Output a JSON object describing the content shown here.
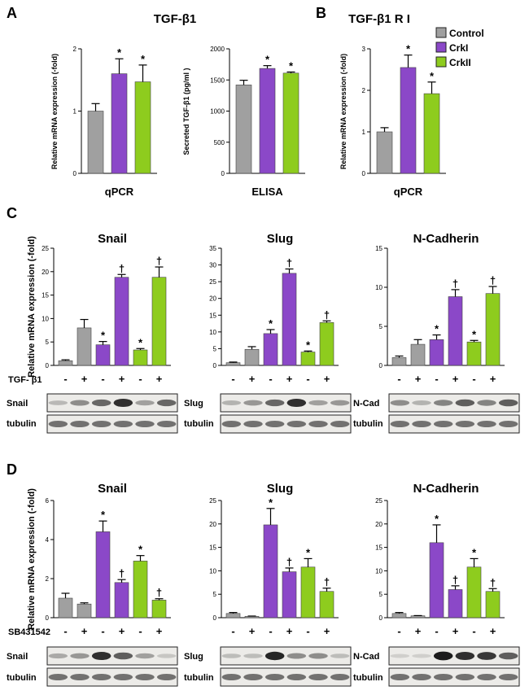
{
  "colors": {
    "control": "#a0a0a0",
    "crki": "#8b48c8",
    "crkii": "#8ecc1e",
    "edge": "#222222"
  },
  "panels": [
    {
      "letter": "A",
      "title": "TGF-β1"
    },
    {
      "letter": "B",
      "title": "TGF-β1 R I"
    },
    {
      "letter": "C",
      "title": ""
    },
    {
      "letter": "D",
      "title": ""
    }
  ],
  "legend": [
    {
      "label": "Control",
      "color": "control"
    },
    {
      "label": "CrkI",
      "color": "crki"
    },
    {
      "label": "CrkII",
      "color": "crkii"
    }
  ],
  "chart_data": [
    {
      "id": "A1",
      "type": "bar",
      "title": "",
      "xlabel": "qPCR",
      "ylabel": "Relative mRNA expression (-fold)",
      "ylim": [
        0,
        2
      ],
      "yticks": [
        0,
        1,
        2
      ],
      "categories": [
        "Control",
        "CrkI",
        "CrkII"
      ],
      "values": [
        1.0,
        1.6,
        1.47
      ],
      "errors": [
        0.12,
        0.24,
        0.27
      ],
      "colors": [
        "control",
        "crki",
        "crkii"
      ],
      "annotations": [
        "",
        "*",
        "*"
      ],
      "treatment": null
    },
    {
      "id": "A2",
      "type": "bar",
      "title": "",
      "xlabel": "ELISA",
      "ylabel": "Secreted TGF-β1 (pg/ml )",
      "ylim": [
        0,
        2000
      ],
      "yticks": [
        0,
        500,
        1000,
        1500,
        2000
      ],
      "categories": [
        "Control",
        "CrkI",
        "CrkII"
      ],
      "values": [
        1420,
        1685,
        1610
      ],
      "errors": [
        75,
        45,
        18
      ],
      "colors": [
        "control",
        "crki",
        "crkii"
      ],
      "annotations": [
        "",
        "*",
        "*"
      ],
      "treatment": null
    },
    {
      "id": "B1",
      "type": "bar",
      "title": "",
      "xlabel": "qPCR",
      "ylabel": "Relative mRNA expression (-fold)",
      "ylim": [
        0,
        3
      ],
      "yticks": [
        0,
        1,
        2,
        3
      ],
      "categories": [
        "Control",
        "CrkI",
        "CrkII"
      ],
      "values": [
        1.0,
        2.55,
        1.92
      ],
      "errors": [
        0.1,
        0.3,
        0.28
      ],
      "colors": [
        "control",
        "crki",
        "crkii"
      ],
      "annotations": [
        "",
        "*",
        "*"
      ],
      "treatment": null
    },
    {
      "id": "C1",
      "type": "bar",
      "title": "Snail",
      "xlabel": "",
      "ylabel": "Relative mRNA expression (-fold)",
      "ylim": [
        0,
        25
      ],
      "yticks": [
        0,
        5,
        10,
        15,
        20,
        25
      ],
      "categories": [
        "Control -",
        "Control +",
        "CrkI -",
        "CrkI +",
        "CrkII -",
        "CrkII +"
      ],
      "values": [
        1.0,
        8.0,
        4.4,
        18.8,
        3.3,
        18.8
      ],
      "errors": [
        0.2,
        1.8,
        0.7,
        0.6,
        0.3,
        2.2
      ],
      "colors": [
        "control",
        "control",
        "crki",
        "crki",
        "crkii",
        "crkii"
      ],
      "annotations": [
        "",
        "",
        "*",
        "†",
        "*",
        "†"
      ],
      "treatment": {
        "label": "TGF- β1",
        "signs": [
          "-",
          "+",
          "-",
          "+",
          "-",
          "+"
        ]
      }
    },
    {
      "id": "C2",
      "type": "bar",
      "title": "Slug",
      "xlabel": "",
      "ylabel": "",
      "ylim": [
        0,
        35
      ],
      "yticks": [
        0,
        5,
        10,
        15,
        20,
        25,
        30,
        35
      ],
      "categories": [
        "Control -",
        "Control +",
        "CrkI -",
        "CrkI +",
        "CrkII -",
        "CrkII +"
      ],
      "values": [
        0.8,
        4.8,
        9.5,
        27.5,
        4.0,
        12.8
      ],
      "errors": [
        0.2,
        0.8,
        1.2,
        1.3,
        0.3,
        0.5
      ],
      "colors": [
        "control",
        "control",
        "crki",
        "crki",
        "crkii",
        "crkii"
      ],
      "annotations": [
        "",
        "",
        "*",
        "†",
        "*",
        "†"
      ],
      "treatment": {
        "label": "",
        "signs": [
          "-",
          "+",
          "-",
          "+",
          "-",
          "+"
        ]
      }
    },
    {
      "id": "C3",
      "type": "bar",
      "title": "N-Cadherin",
      "xlabel": "",
      "ylabel": "",
      "ylim": [
        0,
        15
      ],
      "yticks": [
        0,
        5,
        10,
        15
      ],
      "categories": [
        "Control -",
        "Control +",
        "CrkI -",
        "CrkI +",
        "CrkII -",
        "CrkII +"
      ],
      "values": [
        1.0,
        2.7,
        3.3,
        8.8,
        3.0,
        9.2
      ],
      "errors": [
        0.2,
        0.6,
        0.6,
        0.9,
        0.2,
        0.9
      ],
      "colors": [
        "control",
        "control",
        "crki",
        "crki",
        "crkii",
        "crkii"
      ],
      "annotations": [
        "",
        "",
        "*",
        "†",
        "*",
        "†"
      ],
      "treatment": {
        "label": "",
        "signs": [
          "-",
          "+",
          "-",
          "+",
          "-",
          "+"
        ]
      }
    },
    {
      "id": "D1",
      "type": "bar",
      "title": "Snail",
      "xlabel": "",
      "ylabel": "Relative mRNA expression (-fold)",
      "ylim": [
        0,
        6
      ],
      "yticks": [
        0,
        2,
        4,
        6
      ],
      "categories": [
        "Control -",
        "Control +",
        "CrkI -",
        "CrkI +",
        "CrkII -",
        "CrkII +"
      ],
      "values": [
        1.0,
        0.7,
        4.4,
        1.8,
        2.9,
        0.9
      ],
      "errors": [
        0.25,
        0.06,
        0.55,
        0.15,
        0.28,
        0.07
      ],
      "colors": [
        "control",
        "control",
        "crki",
        "crki",
        "crkii",
        "crkii"
      ],
      "annotations": [
        "",
        "",
        "*",
        "†",
        "*",
        "†"
      ],
      "treatment": {
        "label": "SB431542",
        "signs": [
          "-",
          "+",
          "-",
          "+",
          "-",
          "+"
        ]
      }
    },
    {
      "id": "D2",
      "type": "bar",
      "title": "Slug",
      "xlabel": "",
      "ylabel": "",
      "ylim": [
        0,
        25
      ],
      "yticks": [
        0,
        5,
        10,
        15,
        20,
        25
      ],
      "categories": [
        "Control -",
        "Control +",
        "CrkI -",
        "CrkI +",
        "CrkII -",
        "CrkII +"
      ],
      "values": [
        0.9,
        0.3,
        19.8,
        9.8,
        10.8,
        5.6
      ],
      "errors": [
        0.2,
        0.05,
        3.5,
        0.8,
        1.8,
        0.7
      ],
      "colors": [
        "control",
        "control",
        "crki",
        "crki",
        "crkii",
        "crkii"
      ],
      "annotations": [
        "",
        "",
        "*",
        "†",
        "*",
        "†"
      ],
      "treatment": {
        "label": "",
        "signs": [
          "-",
          "+",
          "-",
          "+",
          "-",
          "+"
        ]
      }
    },
    {
      "id": "D3",
      "type": "bar",
      "title": "N-Cadherin",
      "xlabel": "",
      "ylabel": "",
      "ylim": [
        0,
        25
      ],
      "yticks": [
        0,
        5,
        10,
        15,
        20,
        25
      ],
      "categories": [
        "Control -",
        "Control +",
        "CrkI -",
        "CrkI +",
        "CrkII -",
        "CrkII +"
      ],
      "values": [
        0.9,
        0.4,
        16.0,
        6.0,
        10.8,
        5.6
      ],
      "errors": [
        0.2,
        0.05,
        3.8,
        0.8,
        1.8,
        0.6
      ],
      "colors": [
        "control",
        "control",
        "crki",
        "crki",
        "crkii",
        "crkii"
      ],
      "annotations": [
        "",
        "",
        "*",
        "†",
        "*",
        "†"
      ],
      "treatment": {
        "label": "",
        "signs": [
          "-",
          "+",
          "-",
          "+",
          "-",
          "+"
        ]
      }
    }
  ],
  "blots": [
    {
      "id": "C1",
      "labels": [
        "Snail",
        "tubulin"
      ],
      "bands": [
        [
          0.12,
          0.35,
          0.55,
          0.85,
          0.25,
          0.55
        ],
        [
          0.5,
          0.5,
          0.5,
          0.5,
          0.5,
          0.5
        ]
      ]
    },
    {
      "id": "C2",
      "labels": [
        "Slug",
        "tubulin"
      ],
      "bands": [
        [
          0.15,
          0.3,
          0.55,
          0.85,
          0.25,
          0.3
        ],
        [
          0.5,
          0.5,
          0.5,
          0.5,
          0.5,
          0.5
        ]
      ]
    },
    {
      "id": "C3",
      "labels": [
        "N-Cad",
        "tubulin"
      ],
      "bands": [
        [
          0.35,
          0.15,
          0.4,
          0.6,
          0.4,
          0.6
        ],
        [
          0.5,
          0.5,
          0.5,
          0.5,
          0.5,
          0.5
        ]
      ]
    },
    {
      "id": "D1",
      "labels": [
        "Snail",
        "tubulin"
      ],
      "bands": [
        [
          0.2,
          0.3,
          0.85,
          0.6,
          0.25,
          0.05
        ],
        [
          0.5,
          0.5,
          0.5,
          0.5,
          0.5,
          0.5
        ]
      ]
    },
    {
      "id": "D2",
      "labels": [
        "Slug",
        "tubulin"
      ],
      "bands": [
        [
          0.1,
          0.1,
          0.9,
          0.35,
          0.35,
          0.1
        ],
        [
          0.5,
          0.5,
          0.5,
          0.5,
          0.5,
          0.5
        ]
      ]
    },
    {
      "id": "D3",
      "labels": [
        "N-Cad",
        "tubulin"
      ],
      "bands": [
        [
          0.0,
          0.0,
          0.95,
          0.85,
          0.8,
          0.6
        ],
        [
          0.5,
          0.5,
          0.5,
          0.5,
          0.5,
          0.5
        ]
      ]
    }
  ]
}
